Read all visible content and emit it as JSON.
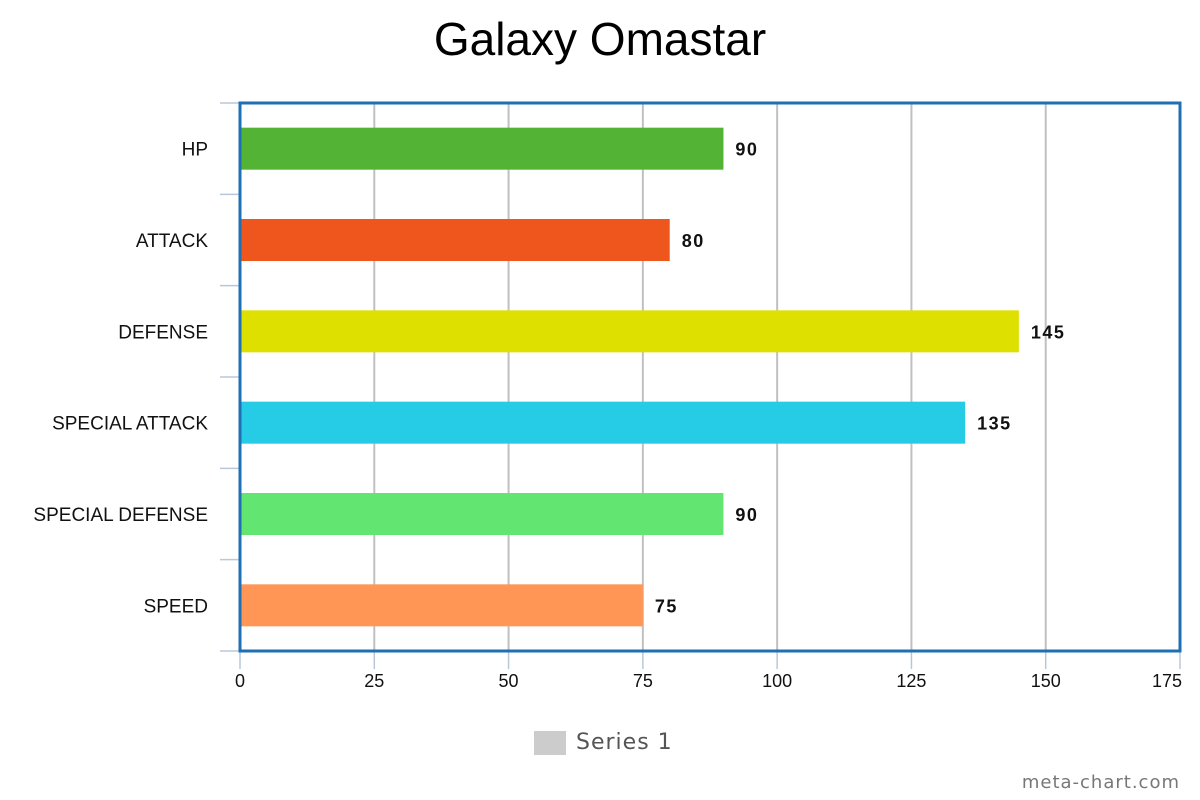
{
  "chart_data": {
    "type": "bar",
    "orientation": "horizontal",
    "title": "Galaxy Omastar",
    "categories": [
      "HP",
      "ATTACK",
      "DEFENSE",
      "SPECIAL ATTACK",
      "SPECIAL DEFENSE",
      "SPEED"
    ],
    "series": [
      {
        "name": "Series 1",
        "values": [
          90,
          80,
          145,
          135,
          90,
          75
        ]
      }
    ],
    "bar_colors": [
      "#52b335",
      "#ef561d",
      "#dee000",
      "#26cbe5",
      "#63e572",
      "#ff9655"
    ],
    "xlim": [
      0,
      175
    ],
    "xticks": [
      0,
      25,
      50,
      75,
      100,
      125,
      150,
      175
    ],
    "xlabel": "",
    "ylabel": "",
    "grid": true,
    "legend_position": "bottom",
    "axis_color": "#1f6fb5",
    "legend_color": "#cccccc"
  },
  "credit": "meta-chart.com"
}
